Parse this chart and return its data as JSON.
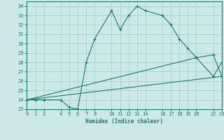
{
  "title": "",
  "xlabel": "Humidex (Indice chaleur)",
  "bg_color": "#cce8e8",
  "grid_color": "#aacfcf",
  "line_color": "#1a7a6e",
  "line1_x": [
    0,
    1,
    2,
    4,
    5,
    6,
    7,
    8,
    10,
    11,
    12,
    13,
    14,
    16,
    17,
    18,
    19,
    20,
    22,
    23
  ],
  "line1_y": [
    24,
    24,
    24,
    24,
    23.2,
    23,
    28,
    30.5,
    33.5,
    31.5,
    33,
    34,
    33.5,
    33,
    32,
    30.5,
    29.5,
    28.5,
    26.5,
    28
  ],
  "line2_x": [
    0,
    23
  ],
  "line2_y": [
    24,
    26.5
  ],
  "line3_x": [
    0,
    20,
    22,
    23
  ],
  "line3_y": [
    24,
    28.5,
    28.8,
    26.5
  ],
  "xlim": [
    0,
    23
  ],
  "ylim": [
    23,
    34.5
  ],
  "yticks": [
    23,
    24,
    25,
    26,
    27,
    28,
    29,
    30,
    31,
    32,
    33,
    34
  ],
  "xticks": [
    0,
    1,
    2,
    4,
    5,
    6,
    7,
    8,
    10,
    11,
    12,
    13,
    14,
    16,
    17,
    18,
    19,
    20,
    22,
    23
  ]
}
